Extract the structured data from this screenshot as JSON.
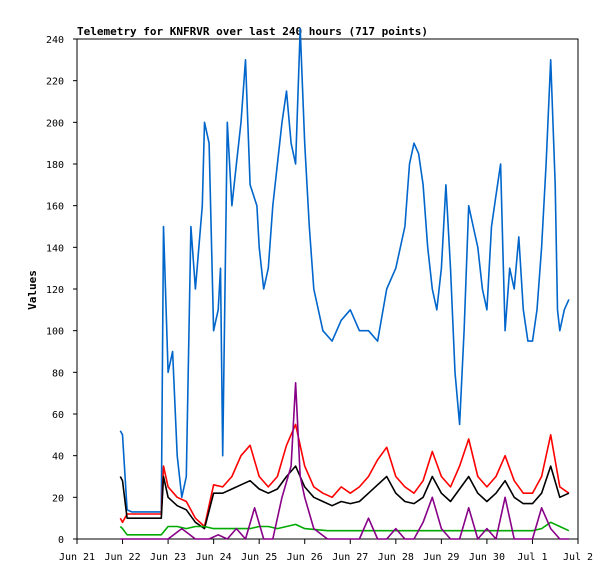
{
  "chart_data": {
    "type": "line",
    "title": "Telemetry for KNFRVR over last 240 hours (717 points)",
    "xlabel": "",
    "ylabel": "Values",
    "x_tick_labels": [
      "Jun 21",
      "Jun 22",
      "Jun 23",
      "Jun 24",
      "Jun 25",
      "Jun 26",
      "Jun 27",
      "Jun 28",
      "Jun 29",
      "Jun 30",
      "Jul 1",
      "Jul 2"
    ],
    "x_range_days": [
      0,
      11
    ],
    "y_ticks": [
      0,
      20,
      40,
      60,
      80,
      100,
      120,
      140,
      160,
      180,
      200,
      220,
      240
    ],
    "ylim": [
      0,
      240
    ],
    "grid": false,
    "legend": "none",
    "series": [
      {
        "color": "#0066cc",
        "x": [
          0.95,
          1.0,
          1.1,
          1.2,
          1.4,
          1.6,
          1.85,
          1.9,
          2.0,
          2.1,
          2.2,
          2.3,
          2.4,
          2.5,
          2.6,
          2.75,
          2.8,
          2.9,
          3.0,
          3.1,
          3.15,
          3.2,
          3.3,
          3.4,
          3.5,
          3.6,
          3.7,
          3.8,
          3.95,
          4.0,
          4.1,
          4.2,
          4.3,
          4.4,
          4.5,
          4.6,
          4.7,
          4.8,
          4.9,
          5.0,
          5.1,
          5.2,
          5.4,
          5.6,
          5.8,
          6.0,
          6.2,
          6.4,
          6.6,
          6.8,
          7.0,
          7.2,
          7.3,
          7.4,
          7.5,
          7.6,
          7.7,
          7.8,
          7.9,
          8.0,
          8.1,
          8.2,
          8.3,
          8.4,
          8.5,
          8.6,
          8.7,
          8.8,
          8.9,
          9.0,
          9.1,
          9.2,
          9.3,
          9.35,
          9.4,
          9.5,
          9.6,
          9.7,
          9.8,
          9.9,
          10.0,
          10.1,
          10.2,
          10.3,
          10.4,
          10.5,
          10.55,
          10.6,
          10.7,
          10.8
        ],
        "y": [
          52,
          50,
          14,
          13,
          13,
          13,
          13,
          150,
          80,
          90,
          40,
          20,
          30,
          150,
          120,
          160,
          200,
          190,
          100,
          110,
          130,
          40,
          200,
          160,
          180,
          200,
          230,
          170,
          160,
          140,
          120,
          130,
          160,
          180,
          200,
          215,
          190,
          180,
          245,
          190,
          150,
          120,
          100,
          95,
          105,
          110,
          100,
          100,
          95,
          120,
          130,
          150,
          180,
          190,
          185,
          170,
          140,
          120,
          110,
          130,
          170,
          130,
          80,
          55,
          100,
          160,
          150,
          140,
          120,
          110,
          150,
          165,
          180,
          140,
          100,
          130,
          120,
          145,
          110,
          95,
          95,
          110,
          140,
          180,
          230,
          170,
          110,
          100,
          110,
          115
        ]
      },
      {
        "color": "#ff0000",
        "x": [
          0.95,
          1.0,
          1.1,
          1.2,
          1.5,
          1.85,
          1.9,
          2.0,
          2.2,
          2.4,
          2.6,
          2.8,
          3.0,
          3.2,
          3.4,
          3.6,
          3.8,
          4.0,
          4.2,
          4.4,
          4.6,
          4.8,
          5.0,
          5.2,
          5.4,
          5.6,
          5.8,
          6.0,
          6.2,
          6.4,
          6.6,
          6.8,
          7.0,
          7.2,
          7.4,
          7.6,
          7.8,
          8.0,
          8.2,
          8.4,
          8.6,
          8.8,
          9.0,
          9.2,
          9.4,
          9.6,
          9.8,
          10.0,
          10.2,
          10.4,
          10.6,
          10.8
        ],
        "y": [
          10,
          8,
          12,
          12,
          12,
          12,
          35,
          25,
          20,
          18,
          10,
          6,
          26,
          25,
          30,
          40,
          45,
          30,
          25,
          30,
          45,
          55,
          35,
          25,
          22,
          20,
          25,
          22,
          25,
          30,
          38,
          44,
          30,
          25,
          22,
          28,
          42,
          30,
          25,
          35,
          48,
          30,
          25,
          30,
          40,
          28,
          22,
          22,
          30,
          50,
          25,
          22
        ]
      },
      {
        "color": "#000000",
        "x": [
          0.95,
          1.0,
          1.1,
          1.2,
          1.5,
          1.85,
          1.9,
          2.0,
          2.2,
          2.4,
          2.6,
          2.8,
          3.0,
          3.2,
          3.4,
          3.6,
          3.8,
          4.0,
          4.2,
          4.4,
          4.6,
          4.8,
          5.0,
          5.2,
          5.4,
          5.6,
          5.8,
          6.0,
          6.2,
          6.4,
          6.6,
          6.8,
          7.0,
          7.2,
          7.4,
          7.6,
          7.8,
          8.0,
          8.2,
          8.4,
          8.6,
          8.8,
          9.0,
          9.2,
          9.4,
          9.6,
          9.8,
          10.0,
          10.2,
          10.4,
          10.6,
          10.8
        ],
        "y": [
          30,
          28,
          10,
          10,
          10,
          10,
          30,
          20,
          16,
          14,
          8,
          5,
          22,
          22,
          24,
          26,
          28,
          24,
          22,
          24,
          30,
          35,
          25,
          20,
          18,
          16,
          18,
          17,
          18,
          22,
          26,
          30,
          22,
          18,
          17,
          20,
          30,
          22,
          18,
          24,
          30,
          22,
          18,
          22,
          28,
          20,
          17,
          17,
          22,
          35,
          20,
          22
        ]
      },
      {
        "color": "#00aa00",
        "x": [
          0.95,
          1.0,
          1.1,
          1.5,
          1.85,
          2.0,
          2.2,
          2.4,
          2.6,
          2.8,
          3.0,
          3.2,
          3.4,
          3.6,
          3.8,
          4.0,
          4.2,
          4.4,
          4.6,
          4.8,
          5.0,
          5.5,
          6.0,
          6.5,
          7.0,
          7.5,
          8.0,
          8.5,
          9.0,
          9.5,
          10.0,
          10.2,
          10.4,
          10.6,
          10.8
        ],
        "y": [
          6,
          5,
          2,
          2,
          2,
          6,
          6,
          5,
          6,
          6,
          5,
          5,
          5,
          5,
          5,
          6,
          6,
          5,
          6,
          7,
          5,
          4,
          4,
          4,
          4,
          4,
          4,
          4,
          4,
          4,
          4,
          5,
          8,
          6,
          4
        ]
      },
      {
        "color": "#880088",
        "x": [
          0.95,
          1.0,
          1.1,
          1.5,
          1.85,
          2.0,
          2.3,
          2.6,
          2.9,
          3.1,
          3.3,
          3.5,
          3.7,
          3.9,
          4.1,
          4.3,
          4.5,
          4.7,
          4.8,
          4.9,
          5.0,
          5.2,
          5.5,
          6.0,
          6.2,
          6.4,
          6.6,
          6.8,
          7.0,
          7.2,
          7.4,
          7.6,
          7.8,
          8.0,
          8.2,
          8.4,
          8.6,
          8.8,
          9.0,
          9.2,
          9.4,
          9.6,
          9.8,
          10.0,
          10.2,
          10.4,
          10.6,
          10.8
        ],
        "y": [
          0,
          0,
          0,
          0,
          0,
          0,
          5,
          0,
          0,
          2,
          0,
          5,
          0,
          15,
          0,
          0,
          20,
          35,
          75,
          30,
          20,
          5,
          0,
          0,
          0,
          10,
          0,
          0,
          5,
          0,
          0,
          8,
          20,
          5,
          0,
          0,
          15,
          0,
          5,
          0,
          20,
          0,
          0,
          0,
          15,
          5,
          0,
          0
        ]
      }
    ]
  }
}
